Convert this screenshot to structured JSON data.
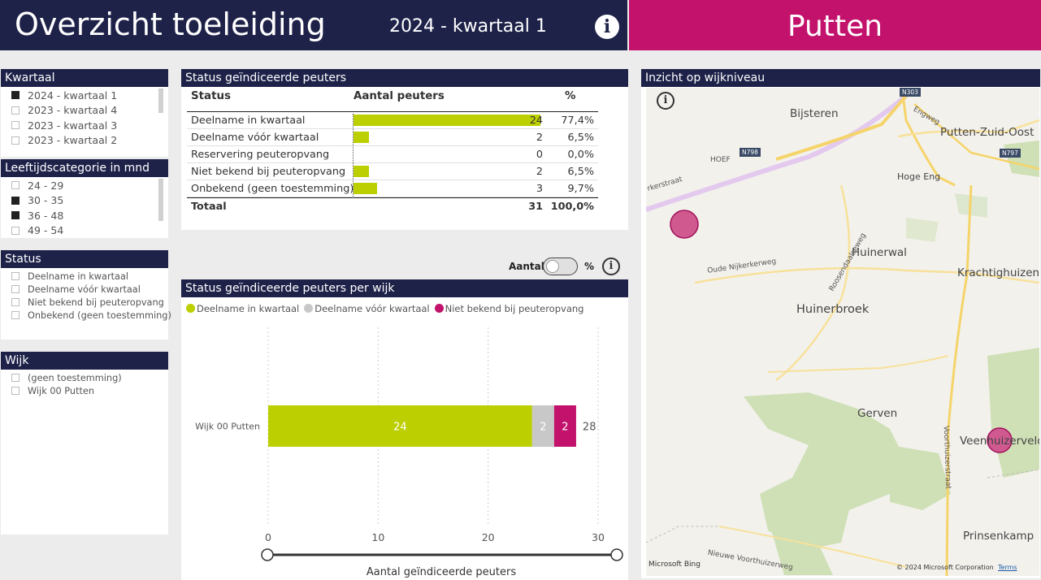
{
  "header": {
    "title": "Overzicht toeleiding",
    "period": "2024 - kwartaal 1",
    "place": "Putten",
    "info_glyph": "i"
  },
  "slicers": {
    "kwartaal": {
      "title": "Kwartaal",
      "items": [
        {
          "label": "2024 - kwartaal 1",
          "checked": true
        },
        {
          "label": "2023 - kwartaal 4",
          "checked": false
        },
        {
          "label": "2023 - kwartaal 3",
          "checked": false
        },
        {
          "label": "2023 - kwartaal 2",
          "checked": false
        }
      ]
    },
    "leeftijd": {
      "title": "Leeftijdscategorie in mnd",
      "items": [
        {
          "label": "24 - 29",
          "checked": false
        },
        {
          "label": "30 - 35",
          "checked": true
        },
        {
          "label": "36 - 48",
          "checked": true
        },
        {
          "label": "49 - 54",
          "checked": false
        }
      ]
    },
    "status": {
      "title": "Status",
      "items": [
        {
          "label": "Deelname in kwartaal",
          "checked": false
        },
        {
          "label": "Deelname vóór kwartaal",
          "checked": false
        },
        {
          "label": "Niet bekend bij peuteropvang",
          "checked": false
        },
        {
          "label": "Onbekend (geen toestemming)",
          "checked": false
        }
      ]
    },
    "wijk": {
      "title": "Wijk",
      "items": [
        {
          "label": "(geen toestemming)",
          "checked": false
        },
        {
          "label": "Wijk 00 Putten",
          "checked": false
        }
      ]
    }
  },
  "status_table": {
    "title": "Status geïndiceerde peuters",
    "columns": [
      "Status",
      "Aantal peuters",
      "%"
    ],
    "rows": [
      {
        "status": "Deelname in kwartaal",
        "aantal": 24,
        "aantal_label": "24",
        "pct": "77,4%"
      },
      {
        "status": "Deelname vóór kwartaal",
        "aantal": 2,
        "aantal_label": "2",
        "pct": "6,5%"
      },
      {
        "status": "Reservering peuteropvang",
        "aantal": 0,
        "aantal_label": "0",
        "pct": "0,0%"
      },
      {
        "status": "Niet bekend bij peuteropvang",
        "aantal": 2,
        "aantal_label": "2",
        "pct": "6,5%"
      },
      {
        "status": "Onbekend (geen toestemming)",
        "aantal": 3,
        "aantal_label": "3",
        "pct": "9,7%"
      }
    ],
    "total": {
      "label": "Totaal",
      "aantal": "31",
      "pct": "100,0%"
    },
    "bar_max": 24
  },
  "toggle": {
    "left_label": "Aantal",
    "right_label": "%"
  },
  "wijk_chart": {
    "title": "Status geïndiceerde peuters per wijk"
  },
  "chart_data": {
    "type": "bar",
    "orientation": "horizontal",
    "stacked": true,
    "categories": [
      "Wijk 00 Putten"
    ],
    "series": [
      {
        "name": "Deelname in kwartaal",
        "values": [
          24
        ],
        "color": "#bccf00"
      },
      {
        "name": "Deelname vóór kwartaal",
        "values": [
          2
        ],
        "color": "#c8c8c8"
      },
      {
        "name": "Niet bekend bij peuteropvang",
        "values": [
          2
        ],
        "color": "#c2126c"
      }
    ],
    "totals": [
      28
    ],
    "xlabel": "Aantal geïndiceerde peuters",
    "xlim": [
      0,
      30
    ],
    "xticks": [
      0,
      10,
      20,
      30
    ],
    "grid": true,
    "legend": "top-left"
  },
  "map": {
    "title": "Inzicht op wijkniveau",
    "places": [
      {
        "name": "Bijsteren"
      },
      {
        "name": "Putten-Zuid-Oost"
      },
      {
        "name": "Hoge Eng"
      },
      {
        "name": "Huinerwal"
      },
      {
        "name": "Krachtighuizen"
      },
      {
        "name": "Huinerbroek"
      },
      {
        "name": "Gerven"
      },
      {
        "name": "Veenhuizerveld"
      },
      {
        "name": "Prinsenkamp"
      }
    ],
    "roads": [
      "Engweg",
      "HOEF",
      "Oude Nijkerkerweg",
      "Roosendaalseweg",
      "Voorthuizerstraat",
      "Nieuwe Voorthuizerweg",
      "rkerstraat"
    ],
    "road_badges": [
      "N303",
      "N798",
      "N797"
    ],
    "attribution": "Microsoft Bing",
    "copyright": "© 2024 Microsoft Corporation",
    "terms": "Terms",
    "bubble_color": "#d05a90"
  }
}
